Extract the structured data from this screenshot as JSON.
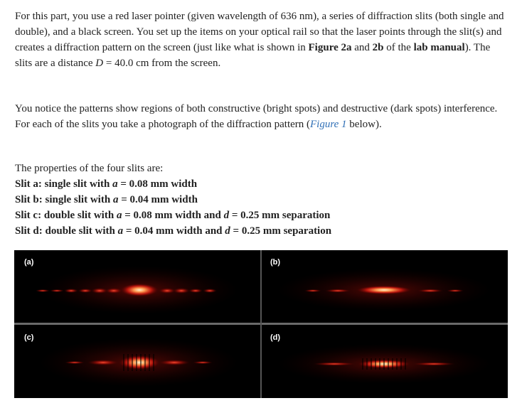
{
  "paragraphs": [
    {
      "lines": [
        [
          {
            "text": "For this part, you use a red laser pointer (given wavelength of 636 nm), a series of diffraction slits (both single and double), and a black screen. You set up the items on your optical rail so that the laser points through the slit(s) and creates a diffraction pattern on the screen (just like what is shown in "
          },
          {
            "text": "Figure 2a",
            "style": "bold"
          },
          {
            "text": " and "
          },
          {
            "text": "2b",
            "style": "bold"
          },
          {
            "text": " of the "
          },
          {
            "text": "lab manual",
            "style": "bold"
          },
          {
            "text": "). The slits are a distance "
          },
          {
            "text": "D",
            "style": "italic"
          },
          {
            "text": " = 40.0 cm from the screen."
          }
        ]
      ]
    },
    {
      "lines": [
        [
          {
            "text": "You notice the patterns show regions of both constructive (bright spots) and destructive (dark spots) interference. For each of the slits you take a photograph of the diffraction pattern ("
          },
          {
            "text": "Figure 1",
            "style": "link"
          },
          {
            "text": " below)."
          }
        ]
      ]
    },
    {
      "lines": [
        [
          {
            "text": "The properties of the four slits are:"
          }
        ],
        [
          {
            "text": "Slit a: single slit with ",
            "style": "bold"
          },
          {
            "text": "a",
            "style": "bold-italic"
          },
          {
            "text": " = 0.08 mm width",
            "style": "bold"
          }
        ],
        [
          {
            "text": "Slit b: single slit with ",
            "style": "bold"
          },
          {
            "text": "a",
            "style": "bold-italic"
          },
          {
            "text": " = 0.04 mm width",
            "style": "bold"
          }
        ],
        [
          {
            "text": "Slit c: double slit with ",
            "style": "bold"
          },
          {
            "text": "a",
            "style": "bold-italic"
          },
          {
            "text": " = 0.08 mm width and ",
            "style": "bold"
          },
          {
            "text": "d",
            "style": "bold-italic"
          },
          {
            "text": " = 0.25 mm separation",
            "style": "bold"
          }
        ],
        [
          {
            "text": "Slit d: double slit with ",
            "style": "bold"
          },
          {
            "text": "a",
            "style": "bold-italic"
          },
          {
            "text": " = 0.04 mm width and ",
            "style": "bold"
          },
          {
            "text": "d",
            "style": "bold-italic"
          },
          {
            "text": " = 0.25 mm separation",
            "style": "bold"
          }
        ]
      ]
    }
  ],
  "figure": {
    "panels": [
      {
        "label": "(a)"
      },
      {
        "label": "(b)"
      },
      {
        "label": "(c)"
      },
      {
        "label": "(d)"
      }
    ]
  }
}
